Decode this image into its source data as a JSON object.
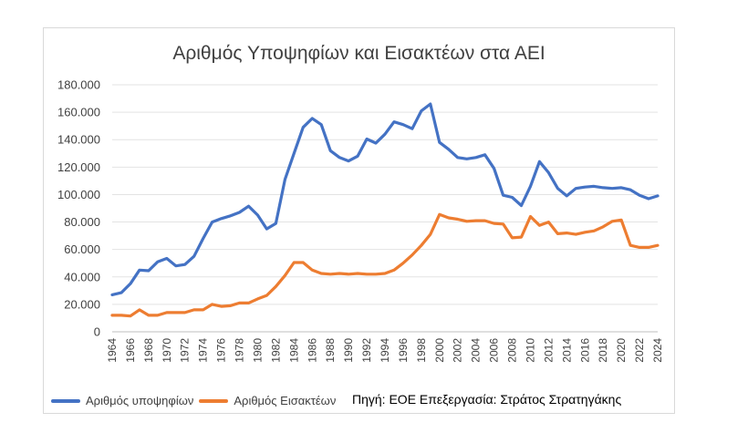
{
  "chart_data": {
    "type": "line",
    "title": "Αριθμός Υποψηφίων και Εισακτέων στα ΑΕΙ",
    "xlabel": "",
    "ylabel": "",
    "ylim": [
      0,
      180000
    ],
    "yticks": [
      0,
      20000,
      40000,
      60000,
      80000,
      100000,
      120000,
      140000,
      160000,
      180000
    ],
    "ytick_labels": [
      "0",
      "20.000",
      "40.000",
      "60.000",
      "80.000",
      "100.000",
      "120.000",
      "140.000",
      "160.000",
      "180.000"
    ],
    "x": [
      1964,
      1965,
      1966,
      1967,
      1968,
      1969,
      1970,
      1971,
      1972,
      1973,
      1974,
      1975,
      1976,
      1977,
      1978,
      1979,
      1980,
      1981,
      1982,
      1983,
      1984,
      1985,
      1986,
      1987,
      1988,
      1989,
      1990,
      1991,
      1992,
      1993,
      1994,
      1995,
      1996,
      1997,
      1998,
      1999,
      2000,
      2001,
      2002,
      2003,
      2004,
      2005,
      2006,
      2007,
      2008,
      2009,
      2010,
      2011,
      2012,
      2013,
      2014,
      2015,
      2016,
      2017,
      2018,
      2019,
      2020,
      2021,
      2022,
      2023,
      2024
    ],
    "xtick_labels": [
      "1964",
      "1966",
      "1968",
      "1970",
      "1972",
      "1974",
      "1976",
      "1978",
      "1980",
      "1982",
      "1984",
      "1986",
      "1988",
      "1990",
      "1992",
      "1994",
      "1996",
      "1998",
      "2000",
      "2002",
      "2004",
      "2006",
      "2008",
      "2010",
      "2012",
      "2014",
      "2016",
      "2018",
      "2020",
      "2022",
      "2024"
    ],
    "grid": true,
    "legend_position": "bottom-left",
    "series": [
      {
        "name": "Αριθμός υποψηφίων",
        "color": "#4472C4",
        "values": [
          27000,
          28500,
          35000,
          45000,
          44500,
          51000,
          53500,
          48000,
          49000,
          55000,
          68000,
          80000,
          82500,
          84500,
          87000,
          91500,
          85000,
          75000,
          79000,
          111000,
          130000,
          149000,
          155500,
          151000,
          132000,
          127000,
          124500,
          128000,
          140500,
          137500,
          144000,
          153000,
          151000,
          148000,
          161000,
          166000,
          138000,
          133000,
          127000,
          126000,
          127000,
          129000,
          119000,
          99500,
          98000,
          92000,
          106000,
          124000,
          116000,
          104500,
          99000,
          104500,
          105500,
          106000,
          105000,
          104500,
          105000,
          103500,
          99500,
          97000,
          99000
        ]
      },
      {
        "name": "Αριθμός Εισακτέων",
        "color": "#ED7D31",
        "values": [
          12000,
          12000,
          11500,
          16000,
          12000,
          12000,
          14000,
          14000,
          14000,
          16000,
          16000,
          20000,
          18500,
          19000,
          21000,
          21000,
          24000,
          26500,
          33000,
          41000,
          50500,
          50500,
          45000,
          42500,
          42000,
          42500,
          42000,
          42500,
          42000,
          42000,
          42500,
          45000,
          50000,
          56000,
          63000,
          71000,
          85500,
          83000,
          82000,
          80500,
          81000,
          81000,
          79000,
          78500,
          68500,
          69000,
          84000,
          77500,
          80000,
          71500,
          72000,
          71000,
          72500,
          73500,
          76500,
          80500,
          81500,
          63000,
          61500,
          61500,
          63000
        ]
      }
    ]
  },
  "legend": {
    "series1_label": "Αριθμός υποψηφίων",
    "series2_label": "Αριθμός Εισακτέων"
  },
  "source_note": "Πηγή: ΕΟΕ Επεξεργασία: Στράτος Στρατηγάκης"
}
